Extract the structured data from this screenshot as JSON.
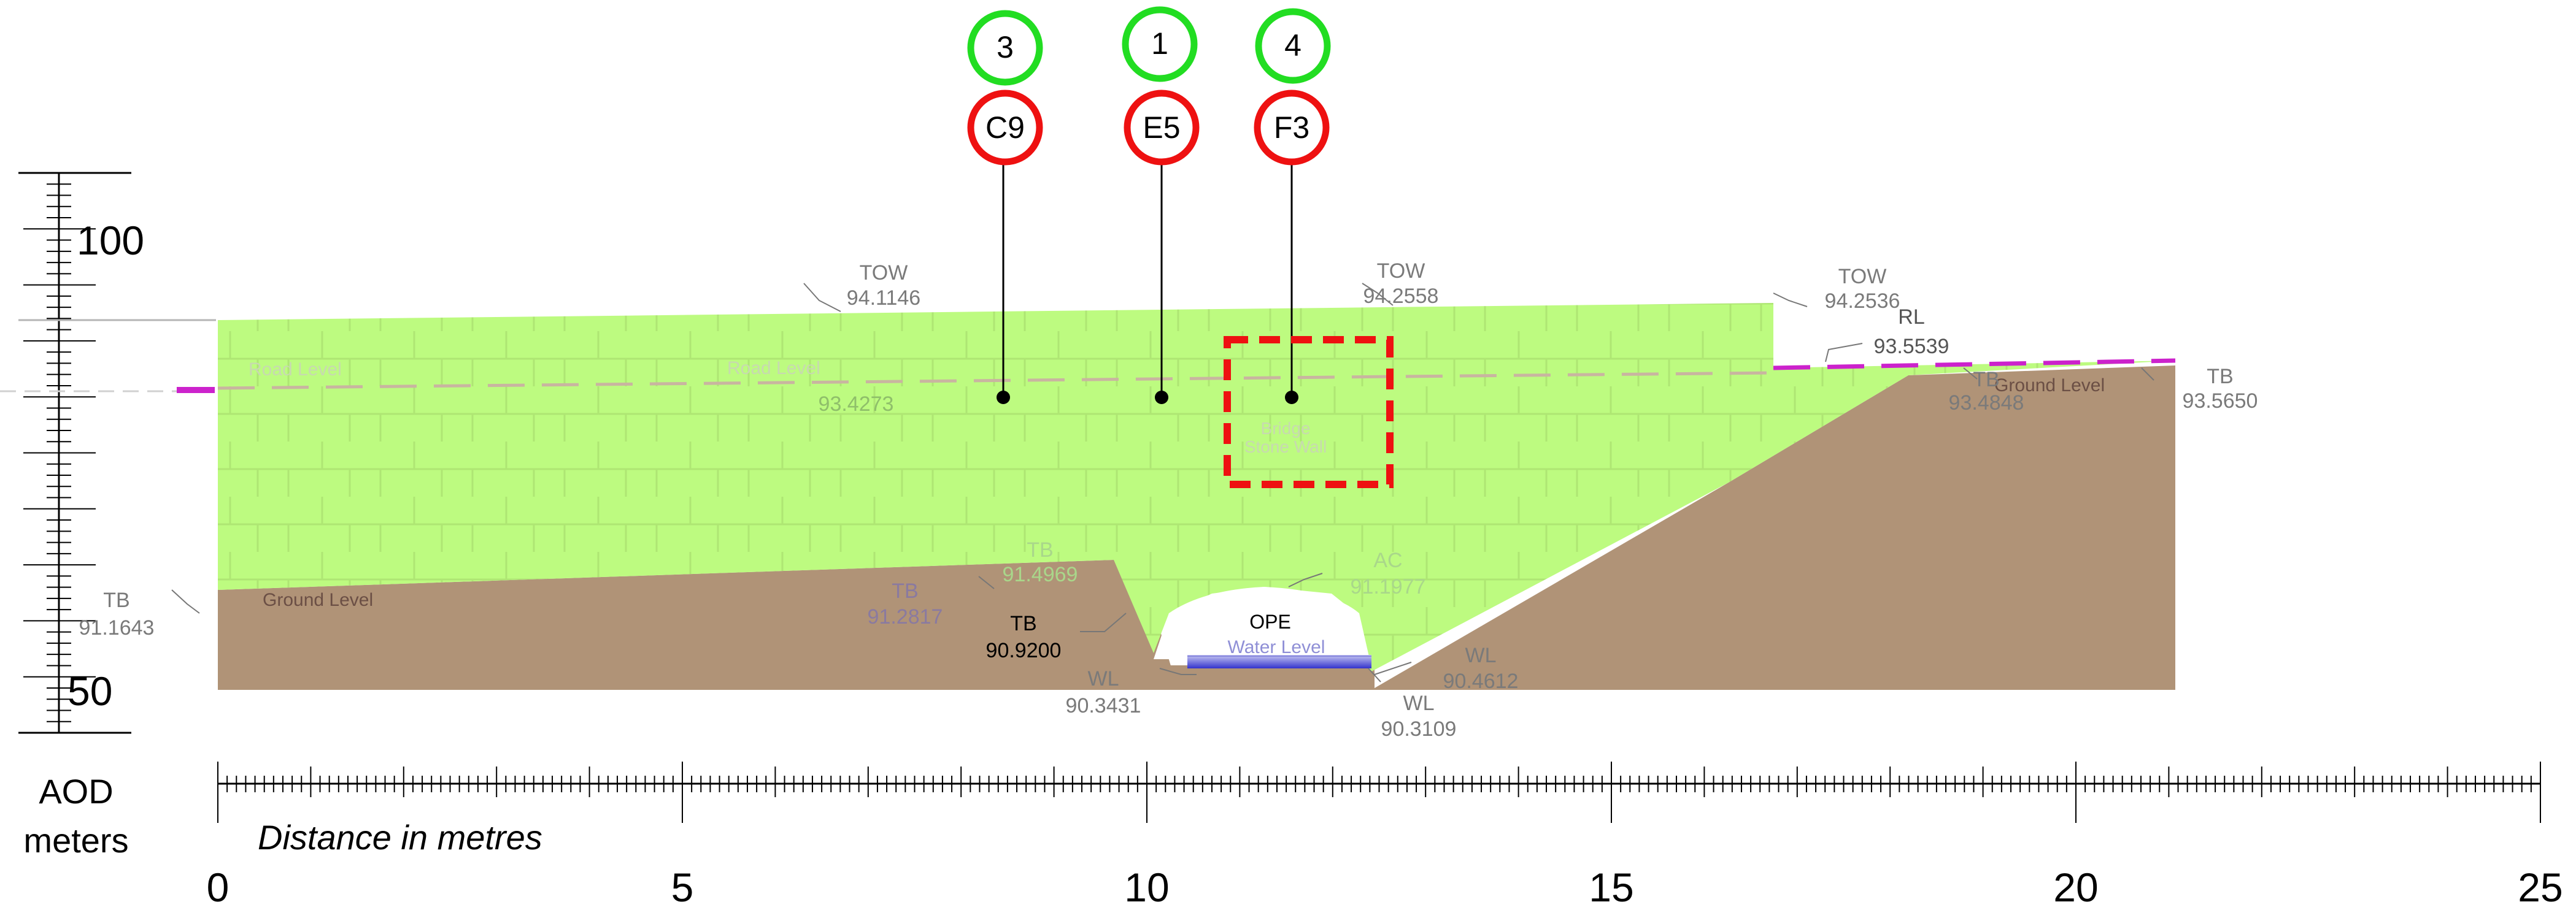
{
  "scales": {
    "vertical": {
      "ticks": [
        "100",
        "50"
      ],
      "unit_line1": "AOD",
      "unit_line2": "meters"
    },
    "horizontal": {
      "title": "Distance in metres",
      "ticks": [
        "0",
        "5",
        "10",
        "15",
        "20",
        "25"
      ]
    }
  },
  "callouts": [
    {
      "top": "3",
      "bottom": "C9"
    },
    {
      "top": "1",
      "bottom": "E5"
    },
    {
      "top": "4",
      "bottom": "F3"
    }
  ],
  "labels": {
    "tow_left": [
      "TOW",
      "94.1146"
    ],
    "tow_mid": [
      "TOW",
      "94.2558"
    ],
    "tow_right": [
      "TOW",
      "94.2536"
    ],
    "rl": [
      "RL",
      "93.5539"
    ],
    "level_left": "93.4273",
    "tb_right1": [
      "TB",
      "93.4848"
    ],
    "tb_right2": [
      "TB",
      "93.5650"
    ],
    "tb_left": [
      "TB",
      "91.1643"
    ],
    "tb_hump": [
      "TB",
      "91.4969"
    ],
    "tb_inner": [
      "TB",
      "91.2817"
    ],
    "tb_black": [
      "TB",
      "90.9200"
    ],
    "ac": [
      "AC",
      "91.1977"
    ],
    "wl_left": [
      "WL",
      "90.3431"
    ],
    "wl_mid": [
      "WL",
      "90.3109"
    ],
    "wl_right": [
      "WL",
      "90.4612"
    ],
    "ope": "OPE",
    "water_level": "Water Level",
    "ground_level_left": "Ground Level",
    "ground_level_right": "Ground Level",
    "road_level_1": "Road Level",
    "road_level_2": "Road Level",
    "bridge_wall": [
      "Bridge",
      "Stone Wall"
    ]
  },
  "colors": {
    "wall_green": "#bdfb80",
    "ground_brown": "#b09377",
    "callout_green": "#22dd22",
    "callout_red": "#ee1111",
    "road_magenta": "#cc22cc",
    "water_blue": "#3333cc"
  }
}
